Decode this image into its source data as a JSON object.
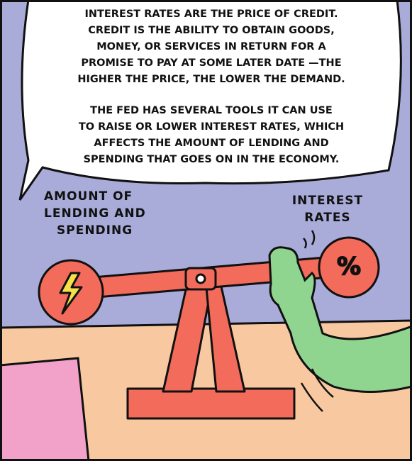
{
  "bubble": {
    "paragraphs": [
      [
        "INTEREST RATES ARE THE PRICE OF CREDIT.",
        "CREDIT IS THE ABILITY TO OBTAIN GOODS,",
        "MONEY, OR SERVICES IN RETURN FOR A",
        "PROMISE TO PAY AT SOME LATER DATE —THE",
        "HIGHER THE PRICE, THE LOWER THE DEMAND."
      ],
      [
        "THE FED HAS SEVERAL TOOLS IT CAN USE",
        "TO RAISE OR LOWER INTEREST RATES, WHICH",
        "AFFECTS THE AMOUNT OF LENDING AND",
        "SPENDING THAT GOES ON IN THE ECONOMY."
      ]
    ]
  },
  "labels": {
    "left": [
      "AMOUNT OF",
      "LENDING AND",
      "SPENDING"
    ],
    "right": [
      "INTEREST",
      "RATES"
    ]
  },
  "seesaw": {
    "right_symbol": "%"
  }
}
